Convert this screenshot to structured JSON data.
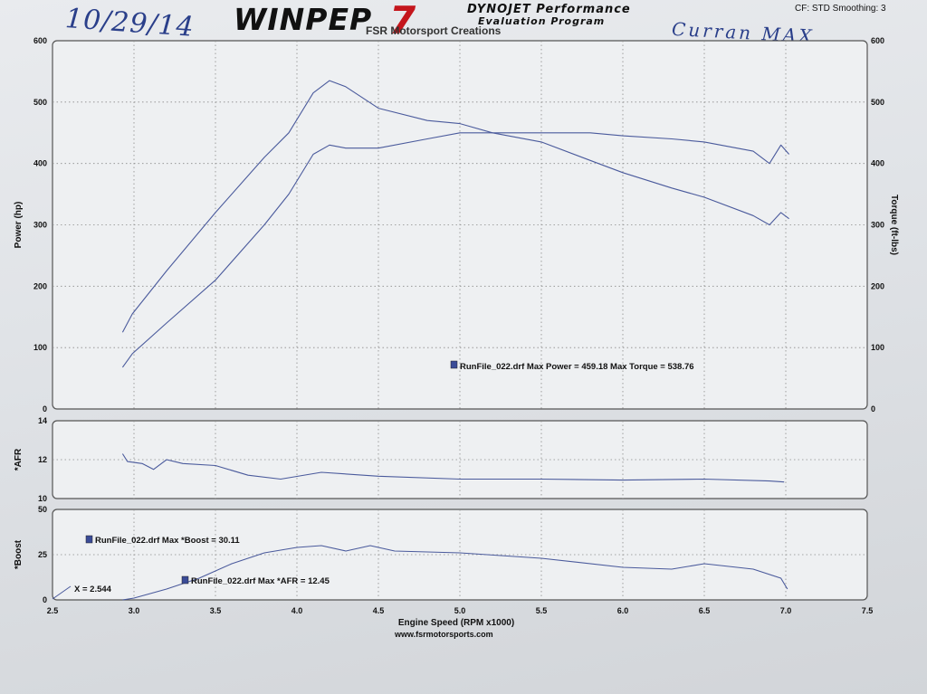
{
  "header": {
    "handwritten_date": "10/29/14",
    "logo_main": "WINPEP",
    "logo_number": "7",
    "logo_line1": "DYNOJET Performance",
    "logo_line2": "Evaluation Program",
    "meta": "CF: STD  Smoothing: 3",
    "shop_name": "FSR Motorsport Creations",
    "handwritten_note": "Curran MAX"
  },
  "footer": {
    "url": "www.fsrmotorsports.com"
  },
  "colors": {
    "trace": "#4a5a9c",
    "marker": "#3a4b97",
    "grid": "#8a8a8a",
    "panel_border": "#555555"
  },
  "chart_data": [
    {
      "type": "line",
      "ylabel": "Power (hp)",
      "ylabel_right": "Torque (ft-lbs)",
      "ylim": [
        0,
        600
      ],
      "yticks": [
        "0",
        "100",
        "200",
        "300",
        "400",
        "500",
        "600"
      ],
      "y2ticks": [
        "0",
        "100",
        "200",
        "300",
        "400",
        "500",
        "600"
      ],
      "grid": true,
      "series": [
        {
          "name": "Power",
          "x": [
            2.93,
            2.99,
            3.2,
            3.5,
            3.8,
            3.95,
            4.1,
            4.2,
            4.3,
            4.5,
            4.8,
            5.0,
            5.2,
            5.5,
            5.8,
            6.0,
            6.3,
            6.5,
            6.8,
            6.9,
            6.97,
            7.02
          ],
          "y": [
            68,
            90,
            140,
            210,
            300,
            350,
            415,
            430,
            425,
            425,
            440,
            450,
            450,
            450,
            450,
            445,
            440,
            435,
            420,
            400,
            430,
            415
          ]
        },
        {
          "name": "Torque",
          "x": [
            2.93,
            2.99,
            3.2,
            3.5,
            3.8,
            3.95,
            4.1,
            4.2,
            4.3,
            4.5,
            4.8,
            5.0,
            5.2,
            5.5,
            5.8,
            6.0,
            6.3,
            6.5,
            6.8,
            6.9,
            6.97,
            7.02
          ],
          "y": [
            125,
            155,
            225,
            320,
            410,
            450,
            515,
            535,
            525,
            490,
            470,
            465,
            450,
            435,
            405,
            385,
            360,
            345,
            315,
            300,
            320,
            310
          ]
        }
      ],
      "annotation": "RunFile_022.drf Max Power = 459.18      Max Torque = 538.76"
    },
    {
      "type": "line",
      "ylabel": "*AFR",
      "ylim": [
        10,
        14
      ],
      "yticks": [
        "10",
        "12",
        "14"
      ],
      "grid": true,
      "series": [
        {
          "name": "AFR",
          "x": [
            2.93,
            2.96,
            3.05,
            3.12,
            3.2,
            3.3,
            3.5,
            3.7,
            3.9,
            4.15,
            4.5,
            5.0,
            5.5,
            6.0,
            6.5,
            6.9,
            6.99
          ],
          "y": [
            12.3,
            11.9,
            11.8,
            11.5,
            12.0,
            11.8,
            11.7,
            11.2,
            11.0,
            11.35,
            11.15,
            11.0,
            11.0,
            10.95,
            11.0,
            10.9,
            10.85
          ]
        }
      ]
    },
    {
      "type": "line",
      "ylabel": "*Boost",
      "ylim": [
        0,
        50
      ],
      "yticks": [
        "0",
        "25",
        "50"
      ],
      "xlabel": "Engine Speed (RPM x1000)",
      "xlim": [
        2.5,
        7.5
      ],
      "xticks": [
        "2.5",
        "3.0",
        "3.5",
        "4.0",
        "4.5",
        "5.0",
        "5.5",
        "6.0",
        "6.5",
        "7.0",
        "7.5"
      ],
      "grid": true,
      "series": [
        {
          "name": "Boost",
          "x": [
            2.93,
            3.0,
            3.2,
            3.4,
            3.6,
            3.8,
            4.0,
            4.15,
            4.3,
            4.45,
            4.6,
            5.0,
            5.5,
            6.0,
            6.3,
            6.5,
            6.8,
            6.97,
            7.01
          ],
          "y": [
            0,
            1,
            6,
            12,
            20,
            26,
            29,
            30,
            27,
            30,
            27,
            26,
            23,
            18,
            17,
            20,
            17,
            12,
            6
          ]
        }
      ],
      "annotations": [
        "RunFile_022.drf Max *Boost = 30.11",
        "RunFile_022.drf Max *AFR = 12.45",
        "X = 2.544"
      ]
    }
  ]
}
